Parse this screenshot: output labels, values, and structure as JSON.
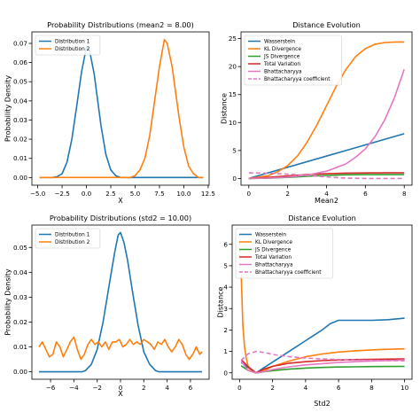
{
  "chart_data": [
    {
      "type": "line",
      "title": "Probability Distributions (mean2 = 8.00)",
      "xlabel": "X",
      "ylabel": "Probability Density",
      "xlim": [
        -5.6,
        12.6
      ],
      "ylim": [
        -0.004,
        0.076
      ],
      "xticks": [
        -5.0,
        -2.5,
        0.0,
        2.5,
        5.0,
        7.5,
        10.0,
        12.5
      ],
      "xtick_labels": [
        "−5.0",
        "−2.5",
        "0.0",
        "2.5",
        "5.0",
        "7.5",
        "10.0",
        "12.5"
      ],
      "yticks": [
        0.0,
        0.01,
        0.02,
        0.03,
        0.04,
        0.05,
        0.06,
        0.07
      ],
      "ytick_labels": [
        "0.00",
        "0.01",
        "0.02",
        "0.03",
        "0.04",
        "0.05",
        "0.06",
        "0.07"
      ],
      "legend": "upper-left",
      "series": [
        {
          "name": "Distribution 1",
          "color": "#1f77b4",
          "x": [
            -4.8,
            -3.5,
            -3.0,
            -2.5,
            -2.0,
            -1.5,
            -1.0,
            -0.5,
            0.0,
            0.3,
            0.8,
            1.5,
            2.0,
            2.5,
            3.0,
            3.5,
            12.0
          ],
          "y": [
            0.0,
            0.0,
            0.0005,
            0.002,
            0.008,
            0.02,
            0.037,
            0.055,
            0.068,
            0.067,
            0.054,
            0.027,
            0.012,
            0.004,
            0.001,
            0.0,
            0.0
          ]
        },
        {
          "name": "Distribution 2",
          "color": "#ff7f0e",
          "x": [
            -4.8,
            4.5,
            5.0,
            5.5,
            6.0,
            6.5,
            7.0,
            7.5,
            8.0,
            8.3,
            8.8,
            9.5,
            10.0,
            10.5,
            11.0,
            11.5,
            12.0
          ],
          "y": [
            0.0,
            0.0,
            0.001,
            0.004,
            0.01,
            0.022,
            0.04,
            0.058,
            0.072,
            0.07,
            0.058,
            0.032,
            0.016,
            0.006,
            0.002,
            0.0,
            0.0
          ]
        }
      ]
    },
    {
      "type": "line",
      "title": "Distance Evolution",
      "xlabel": "Mean2",
      "ylabel": "Distance",
      "xlim": [
        -0.4,
        8.4
      ],
      "ylim": [
        -1.2,
        26.2
      ],
      "xticks": [
        0,
        2,
        4,
        6,
        8
      ],
      "xtick_labels": [
        "0",
        "2",
        "4",
        "6",
        "8"
      ],
      "yticks": [
        0,
        5,
        10,
        15,
        20,
        25
      ],
      "ytick_labels": [
        "0",
        "5",
        "10",
        "15",
        "20",
        "25"
      ],
      "legend": "upper-left",
      "series": [
        {
          "name": "Wasserstein",
          "color": "#1f77b4",
          "x": [
            0,
            8
          ],
          "y": [
            0,
            8
          ]
        },
        {
          "name": "KL Divergence",
          "color": "#ff7f0e",
          "x": [
            0,
            1,
            1.5,
            2,
            2.5,
            3,
            3.5,
            4,
            4.5,
            5,
            5.5,
            6,
            6.5,
            7,
            7.5,
            8
          ],
          "y": [
            0,
            0.5,
            1.2,
            2.3,
            4.0,
            6.5,
            9.5,
            13.0,
            16.5,
            19.5,
            21.8,
            23.2,
            24.0,
            24.3,
            24.4,
            24.4
          ]
        },
        {
          "name": "JS Divergence",
          "color": "#2ca02c",
          "x": [
            0,
            1,
            2,
            3,
            4,
            5,
            6,
            7,
            8
          ],
          "y": [
            0,
            0.05,
            0.2,
            0.4,
            0.55,
            0.65,
            0.68,
            0.69,
            0.69
          ]
        },
        {
          "name": "Total Variation",
          "color": "#d62728",
          "x": [
            0,
            1,
            2,
            3,
            4,
            5,
            6,
            7,
            8
          ],
          "y": [
            0,
            0.2,
            0.45,
            0.7,
            0.85,
            0.95,
            0.99,
            1.0,
            1.0
          ]
        },
        {
          "name": "Bhattacharyya",
          "color": "#e377c2",
          "x": [
            0,
            1,
            2,
            3,
            4,
            5,
            5.5,
            6,
            6.5,
            7,
            7.5,
            8
          ],
          "y": [
            0,
            0.06,
            0.25,
            0.6,
            1.3,
            2.6,
            3.8,
            5.3,
            7.5,
            10.5,
            14.5,
            19.5
          ]
        },
        {
          "name": "Bhattacharyya coefficient",
          "color": "#e377c2",
          "dashed": true,
          "x": [
            0,
            1,
            2,
            3,
            4,
            5,
            6,
            7,
            8
          ],
          "y": [
            1.0,
            0.95,
            0.78,
            0.55,
            0.27,
            0.07,
            0.0,
            0.0,
            0.0
          ]
        }
      ]
    },
    {
      "type": "line",
      "title": "Probability Distributions (std2 = 10.00)",
      "xlabel": "X",
      "ylabel": "Probability Density",
      "xlim": [
        -7.6,
        7.6
      ],
      "ylim": [
        -0.003,
        0.059
      ],
      "xticks": [
        -6,
        -4,
        -2,
        0,
        2,
        4,
        6
      ],
      "xtick_labels": [
        "−6",
        "−4",
        "−2",
        "0",
        "2",
        "4",
        "6"
      ],
      "yticks": [
        0.0,
        0.01,
        0.02,
        0.03,
        0.04,
        0.05
      ],
      "ytick_labels": [
        "0.00",
        "0.01",
        "0.02",
        "0.03",
        "0.04",
        "0.05"
      ],
      "legend": "upper-left",
      "series": [
        {
          "name": "Distribution 1",
          "color": "#1f77b4",
          "x": [
            -7.0,
            -3.3,
            -3.0,
            -2.5,
            -2.0,
            -1.5,
            -1.0,
            -0.5,
            -0.2,
            0.0,
            0.3,
            0.6,
            1.0,
            1.5,
            2.0,
            2.5,
            3.0,
            3.3,
            7.0
          ],
          "y": [
            0.0,
            0.0,
            0.0005,
            0.003,
            0.009,
            0.02,
            0.034,
            0.048,
            0.055,
            0.056,
            0.052,
            0.045,
            0.033,
            0.019,
            0.008,
            0.003,
            0.0005,
            0.0,
            0.0
          ]
        },
        {
          "name": "Distribution 2",
          "color": "#ff7f0e",
          "x": [
            -7.0,
            -6.7,
            -6.4,
            -6.1,
            -5.8,
            -5.5,
            -5.2,
            -4.9,
            -4.6,
            -4.3,
            -4.0,
            -3.7,
            -3.4,
            -3.1,
            -2.8,
            -2.5,
            -2.2,
            -1.9,
            -1.6,
            -1.3,
            -1.0,
            -0.7,
            -0.4,
            -0.1,
            0.2,
            0.5,
            0.8,
            1.1,
            1.4,
            1.7,
            2.0,
            2.3,
            2.6,
            2.9,
            3.2,
            3.5,
            3.8,
            4.1,
            4.4,
            4.7,
            5.0,
            5.3,
            5.6,
            5.9,
            6.2,
            6.5,
            6.8,
            7.0
          ],
          "y": [
            0.01,
            0.012,
            0.009,
            0.006,
            0.007,
            0.012,
            0.01,
            0.006,
            0.009,
            0.012,
            0.014,
            0.009,
            0.005,
            0.007,
            0.011,
            0.013,
            0.011,
            0.012,
            0.01,
            0.012,
            0.009,
            0.012,
            0.012,
            0.013,
            0.01,
            0.011,
            0.013,
            0.011,
            0.012,
            0.011,
            0.013,
            0.012,
            0.011,
            0.009,
            0.012,
            0.011,
            0.013,
            0.01,
            0.008,
            0.01,
            0.013,
            0.011,
            0.007,
            0.005,
            0.007,
            0.01,
            0.007,
            0.008
          ]
        }
      ]
    },
    {
      "type": "line",
      "title": "Distance Evolution",
      "xlabel": "Std2",
      "ylabel": "Distance",
      "xlim": [
        -0.45,
        10.45
      ],
      "ylim": [
        -0.3,
        6.9
      ],
      "xticks": [
        0,
        2,
        4,
        6,
        8,
        10
      ],
      "xtick_labels": [
        "0",
        "2",
        "4",
        "6",
        "8",
        "10"
      ],
      "yticks": [
        0,
        1,
        2,
        3,
        4,
        5,
        6
      ],
      "ytick_labels": [
        "0",
        "1",
        "2",
        "3",
        "4",
        "5",
        "6"
      ],
      "legend": "upper-left",
      "series": [
        {
          "name": "Wasserstein",
          "color": "#1f77b4",
          "x": [
            0.1,
            0.5,
            1.0,
            1.5,
            2,
            3,
            4,
            5,
            5.5,
            6,
            7,
            8,
            9,
            10
          ],
          "y": [
            0.5,
            0.25,
            0.0,
            0.25,
            0.5,
            1.0,
            1.5,
            2.0,
            2.3,
            2.45,
            2.45,
            2.45,
            2.48,
            2.55
          ]
        },
        {
          "name": "KL Divergence",
          "color": "#ff7f0e",
          "x": [
            0.1,
            0.2,
            0.3,
            0.4,
            0.5,
            0.6,
            0.8,
            1.0,
            1.5,
            2,
            3,
            4,
            5,
            6,
            7,
            8,
            9,
            10
          ],
          "y": [
            4.6,
            2.2,
            1.2,
            0.7,
            0.35,
            0.18,
            0.05,
            0.0,
            0.1,
            0.3,
            0.55,
            0.75,
            0.88,
            0.97,
            1.03,
            1.07,
            1.1,
            1.12
          ]
        },
        {
          "name": "JS Divergence",
          "color": "#2ca02c",
          "x": [
            0.1,
            0.5,
            1.0,
            1.5,
            2,
            3,
            4,
            5,
            6,
            7,
            8,
            9,
            10
          ],
          "y": [
            0.33,
            0.12,
            0.0,
            0.05,
            0.1,
            0.17,
            0.22,
            0.25,
            0.27,
            0.28,
            0.29,
            0.295,
            0.3
          ]
        },
        {
          "name": "Total Variation",
          "color": "#d62728",
          "x": [
            0.1,
            0.5,
            1.0,
            1.5,
            2,
            3,
            4,
            5,
            6,
            7,
            8,
            9,
            10
          ],
          "y": [
            0.62,
            0.3,
            0.0,
            0.18,
            0.3,
            0.45,
            0.52,
            0.57,
            0.6,
            0.62,
            0.63,
            0.64,
            0.65
          ]
        },
        {
          "name": "Bhattacharyya",
          "color": "#e377c2",
          "x": [
            0.1,
            0.5,
            1.0,
            1.5,
            2,
            3,
            4,
            5,
            6,
            7,
            8,
            9,
            10
          ],
          "y": [
            0.55,
            0.12,
            0.0,
            0.06,
            0.15,
            0.28,
            0.37,
            0.43,
            0.48,
            0.52,
            0.55,
            0.57,
            0.6
          ]
        },
        {
          "name": "Bhattacharyya coefficient",
          "color": "#e377c2",
          "dashed": true,
          "x": [
            0.1,
            0.5,
            1.0,
            1.5,
            2,
            3,
            4,
            5,
            6,
            7,
            8,
            9,
            10
          ],
          "y": [
            0.58,
            0.88,
            1.0,
            0.95,
            0.86,
            0.76,
            0.69,
            0.65,
            0.62,
            0.6,
            0.58,
            0.57,
            0.56
          ]
        }
      ]
    }
  ]
}
